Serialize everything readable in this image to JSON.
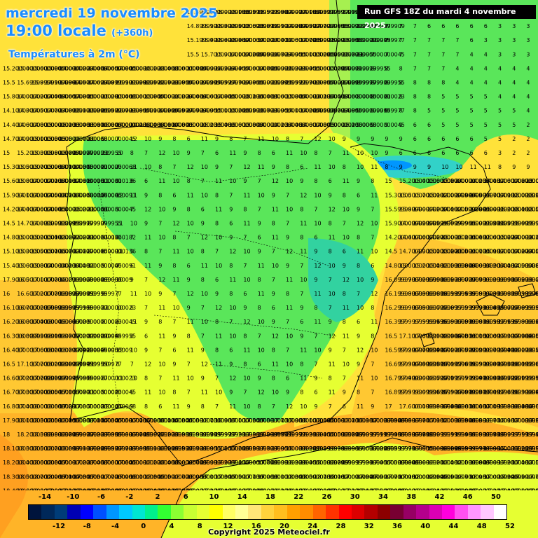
{
  "header": {
    "date_line": "mercredi 19 novembre 2025",
    "time_line": "19:00 locale",
    "time_hint": "(+360h)",
    "variable": "Températures à 2m (°C)"
  },
  "run_label": "Run GFS 18Z du mardi 4 novembre 2025",
  "legend": {
    "top_labels": [
      "-14",
      "-10",
      "-6",
      "-2",
      "2",
      "6",
      "10",
      "14",
      "18",
      "22",
      "26",
      "30",
      "34",
      "38",
      "42",
      "46",
      "50"
    ],
    "bottom_labels": [
      "-12",
      "-8",
      "-4",
      "0",
      "4",
      "8",
      "12",
      "16",
      "20",
      "24",
      "28",
      "32",
      "36",
      "40",
      "44",
      "48",
      "52"
    ],
    "colors": [
      "#00143c",
      "#00285a",
      "#003c78",
      "#0000b4",
      "#0000ff",
      "#0050ff",
      "#0096ff",
      "#00c8ff",
      "#00e6d2",
      "#00f08c",
      "#32ff32",
      "#8cff32",
      "#c8ff32",
      "#e6ff32",
      "#ffff00",
      "#ffff64",
      "#ffff96",
      "#ffe678",
      "#ffd23c",
      "#ffbe1e",
      "#ffa000",
      "#ff8c00",
      "#ff6400",
      "#ff3200",
      "#ff0000",
      "#dc0000",
      "#b40000",
      "#8c0000",
      "#780032",
      "#960064",
      "#b4008c",
      "#dc00b4",
      "#ff00dc",
      "#ff50f0",
      "#ff96ff",
      "#ffc8ff",
      "#ffffff"
    ]
  },
  "copyright": "Copyright 2025 Meteociel.fr"
}
